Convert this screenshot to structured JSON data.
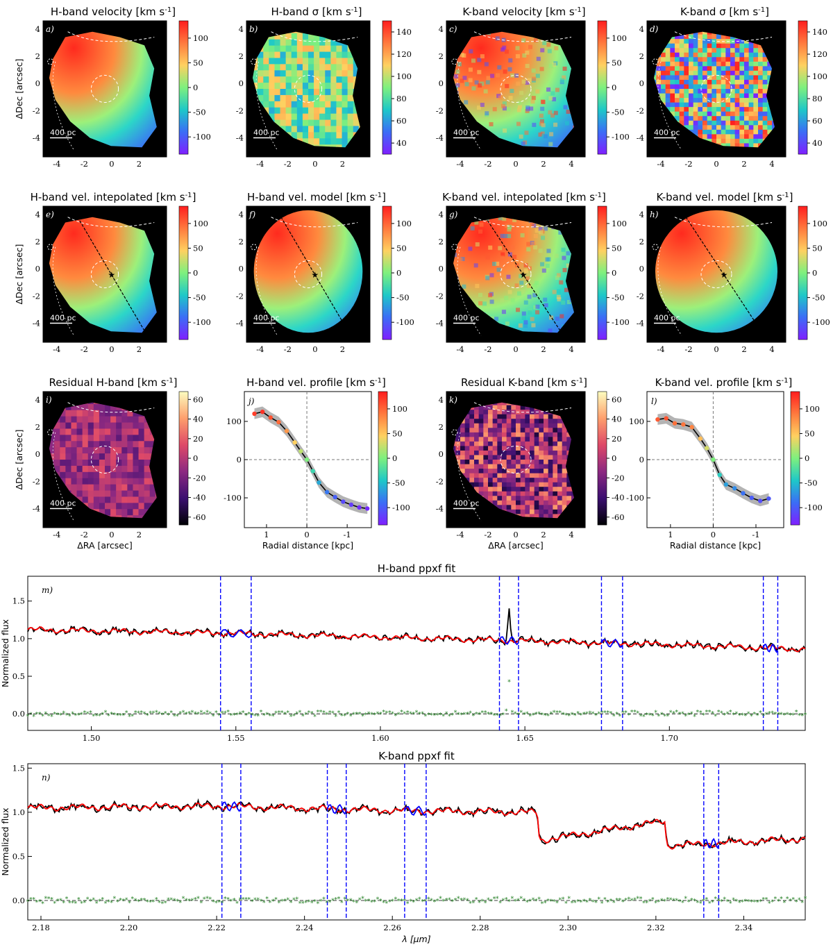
{
  "units": "[km s$^{-1}$]",
  "colors": {
    "rainbow": [
      "#7f1fff",
      "#3b6df6",
      "#1ec8c8",
      "#7ef07e",
      "#ffd060",
      "#ff7a3e",
      "#ff1e1e"
    ],
    "magma": [
      "#000004",
      "#3b0f70",
      "#8c2981",
      "#de4968",
      "#fe9f6d",
      "#fcfdbf"
    ],
    "data": "#000000",
    "model": "#ff0000",
    "emission": "#0000ff",
    "residual": "#1a7a1a",
    "mask": "#0000ff"
  },
  "map_panels": [
    {
      "label": "a)",
      "title": "H-band velocity [km s$^{-1}$]",
      "cmap": "rainbow",
      "cb_ticks": [
        "100",
        "50",
        "0",
        "-50",
        "-100"
      ],
      "cb_range": [
        -135,
        135
      ],
      "xticks": [
        "-4",
        "-2",
        "0",
        "2"
      ],
      "yticks": [
        "4",
        "2",
        "0",
        "-2",
        "-4"
      ],
      "scale_text": "400 pc",
      "xlabel": "",
      "ylabel": "ΔDec [arcsec]",
      "line": false
    },
    {
      "label": "b)",
      "title": "H-band σ [km s$^{-1}$]",
      "cmap": "rainbow",
      "cb_ticks": [
        "140",
        "120",
        "100",
        "80",
        "60",
        "40"
      ],
      "cb_range": [
        30,
        150
      ],
      "xticks": [
        "-4",
        "-2",
        "0",
        "2"
      ],
      "yticks": [
        "4",
        "2",
        "0",
        "-2",
        "-4"
      ],
      "scale_text": "400 pc",
      "xlabel": "",
      "ylabel": "",
      "line": false
    },
    {
      "label": "c)",
      "title": "K-band velocity [km s$^{-1}$]",
      "cmap": "rainbow",
      "cb_ticks": [
        "100",
        "50",
        "0",
        "-50",
        "-100"
      ],
      "cb_range": [
        -135,
        135
      ],
      "xticks": [
        "-4",
        "-2",
        "0",
        "2",
        "4"
      ],
      "yticks": [
        "4",
        "2",
        "0",
        "-2",
        "-4"
      ],
      "scale_text": "400 pc",
      "xlabel": "",
      "ylabel": "",
      "line": false
    },
    {
      "label": "d)",
      "title": "K-band σ [km s$^{-1}$]",
      "cmap": "rainbow",
      "cb_ticks": [
        "140",
        "120",
        "100",
        "80",
        "60",
        "40"
      ],
      "cb_range": [
        30,
        150
      ],
      "xticks": [
        "-4",
        "-2",
        "0",
        "2",
        "4"
      ],
      "yticks": [
        "4",
        "2",
        "0",
        "-2",
        "-4"
      ],
      "scale_text": "400 pc",
      "xlabel": "",
      "ylabel": "",
      "line": false
    },
    {
      "label": "e)",
      "title": "H-band vel. intepolated [km s$^{-1}$]",
      "cmap": "rainbow",
      "cb_ticks": [
        "100",
        "50",
        "0",
        "-50",
        "-100"
      ],
      "cb_range": [
        -135,
        135
      ],
      "xticks": [
        "-4",
        "-2",
        "0",
        "2"
      ],
      "yticks": [
        "4",
        "2",
        "0",
        "-2",
        "-4"
      ],
      "scale_text": "400 pc",
      "xlabel": "",
      "ylabel": "ΔDec [arcsec]",
      "line": true
    },
    {
      "label": "f)",
      "title": "H-band vel. model [km s$^{-1}$]",
      "cmap": "rainbow",
      "cb_ticks": [
        "100",
        "50",
        "0",
        "-50",
        "-100"
      ],
      "cb_range": [
        -135,
        135
      ],
      "xticks": [
        "-4",
        "-2",
        "0",
        "2"
      ],
      "yticks": [
        "4",
        "2",
        "0",
        "-2",
        "-4"
      ],
      "scale_text": "400 pc",
      "xlabel": "",
      "ylabel": "",
      "line": true
    },
    {
      "label": "g)",
      "title": "K-band vel. intepolated [km s$^{-1}$]",
      "cmap": "rainbow",
      "cb_ticks": [
        "100",
        "50",
        "0",
        "-50",
        "-100"
      ],
      "cb_range": [
        -135,
        135
      ],
      "xticks": [
        "-4",
        "-2",
        "0",
        "2",
        "4"
      ],
      "yticks": [
        "4",
        "2",
        "0",
        "-2",
        "-4"
      ],
      "scale_text": "400 pc",
      "xlabel": "",
      "ylabel": "",
      "line": true
    },
    {
      "label": "h)",
      "title": "K-band vel. model [km s$^{-1}$]",
      "cmap": "rainbow",
      "cb_ticks": [
        "100",
        "50",
        "0",
        "-50",
        "-100"
      ],
      "cb_range": [
        -135,
        135
      ],
      "xticks": [
        "-4",
        "-2",
        "0",
        "2",
        "4"
      ],
      "yticks": [
        "4",
        "2",
        "0",
        "-2",
        "-4"
      ],
      "scale_text": "400 pc",
      "xlabel": "",
      "ylabel": "",
      "line": true
    },
    {
      "label": "i)",
      "title": "Residual H-band [km s$^{-1}$]",
      "cmap": "magma",
      "cb_ticks": [
        "60",
        "40",
        "20",
        "0",
        "-20",
        "-40",
        "-60"
      ],
      "cb_range": [
        -68,
        68
      ],
      "xticks": [
        "-4",
        "-2",
        "0",
        "2"
      ],
      "yticks": [
        "4",
        "2",
        "0",
        "-2",
        "-4"
      ],
      "scale_text": "400 pc",
      "xlabel": "ΔRA [arcsec]",
      "ylabel": "ΔDec [arcsec]",
      "line": false
    },
    {
      "label": "k)",
      "title": "Residual K-band [km s$^{-1}$]",
      "cmap": "magma",
      "cb_ticks": [
        "60",
        "40",
        "20",
        "0",
        "-20",
        "-40",
        "-60"
      ],
      "cb_range": [
        -68,
        68
      ],
      "xticks": [
        "-4",
        "-2",
        "0",
        "2",
        "4"
      ],
      "yticks": [
        "4",
        "2",
        "0",
        "-2",
        "-4"
      ],
      "scale_text": "400 pc",
      "xlabel": "ΔRA [arcsec]",
      "ylabel": "",
      "line": false
    }
  ],
  "chart_data": [
    {
      "type": "line",
      "label": "j)",
      "title": "H-band vel. profile [km s$^{-1}$]",
      "xlabel": "Radial distance [kpc]",
      "xlim": [
        1.55,
        -1.6
      ],
      "ylim": [
        -178,
        178
      ],
      "xticks": [
        "1",
        "0",
        "-1"
      ],
      "yticks": [
        "100",
        "0",
        "-100"
      ],
      "cb_ticks": [
        "100",
        "50",
        "0",
        "-50",
        "-100"
      ],
      "x": [
        1.3,
        1.1,
        0.9,
        0.7,
        0.5,
        0.3,
        0.15,
        0.0,
        -0.15,
        -0.3,
        -0.5,
        -0.7,
        -0.9,
        -1.1,
        -1.3,
        -1.5
      ],
      "y": [
        120,
        125,
        110,
        98,
        75,
        45,
        22,
        0,
        -30,
        -60,
        -85,
        -98,
        -110,
        -118,
        -125,
        -128
      ]
    },
    {
      "type": "line",
      "label": "l)",
      "title": "K-band vel. profile [km s$^{-1}$]",
      "xlabel": "Radial distance [kpc]",
      "xlim": [
        1.55,
        -1.65
      ],
      "ylim": [
        -178,
        178
      ],
      "xticks": [
        "1",
        "0",
        "-1"
      ],
      "yticks": [
        "100",
        "0",
        "-100"
      ],
      "cb_ticks": [
        "100",
        "50",
        "0",
        "-50",
        "-100"
      ],
      "x": [
        1.3,
        1.1,
        0.9,
        0.7,
        0.5,
        0.3,
        0.15,
        0.0,
        -0.15,
        -0.3,
        -0.5,
        -0.7,
        -0.9,
        -1.1,
        -1.3
      ],
      "y": [
        105,
        108,
        95,
        92,
        85,
        55,
        30,
        0,
        -40,
        -65,
        -75,
        -88,
        -100,
        -108,
        -102
      ]
    },
    {
      "type": "line",
      "label": "m)",
      "title": "H-band ppxf fit",
      "xlabel": "",
      "ylabel": "Normalized flux",
      "xlim": [
        1.478,
        1.747
      ],
      "ylim": [
        -0.22,
        1.83
      ],
      "xticks": [
        "1.50",
        "1.55",
        "1.60",
        "1.65",
        "1.70"
      ],
      "yticks": [
        "1.5",
        "1.0",
        "0.5",
        "0.0"
      ],
      "continuum_x": [
        1.478,
        1.55,
        1.6,
        1.65,
        1.7,
        1.747
      ],
      "continuum_y": [
        1.12,
        1.07,
        1.02,
        0.97,
        0.92,
        0.86
      ],
      "masks": [
        [
          1.5447,
          1.5553
        ],
        [
          1.6412,
          1.6478
        ],
        [
          1.6765,
          1.6838
        ],
        [
          1.7325,
          1.7375
        ]
      ],
      "emission_peaks": [
        [
          1.6445,
          0.45
        ]
      ]
    },
    {
      "type": "line",
      "label": "n)",
      "title": "K-band ppxf fit",
      "xlabel": "λ [μm]",
      "ylabel": "Normalized flux",
      "xlim": [
        2.177,
        2.354
      ],
      "ylim": [
        -0.22,
        1.55
      ],
      "xticks": [
        "2.18",
        "2.20",
        "2.22",
        "2.24",
        "2.26",
        "2.28",
        "2.30",
        "2.32",
        "2.34"
      ],
      "yticks": [
        "1.5",
        "1.0",
        "0.5",
        "0.0"
      ],
      "continuum_x": [
        2.177,
        2.22,
        2.26,
        2.293,
        2.2935,
        2.322,
        2.3225,
        2.354
      ],
      "continuum_y": [
        1.05,
        1.07,
        1.02,
        1.0,
        0.68,
        0.9,
        0.62,
        0.7
      ],
      "masks": [
        [
          2.2212,
          2.2255
        ],
        [
          2.2452,
          2.2495
        ],
        [
          2.2628,
          2.2677
        ],
        [
          2.3309,
          2.3343
        ]
      ],
      "emission_peaks": []
    }
  ]
}
